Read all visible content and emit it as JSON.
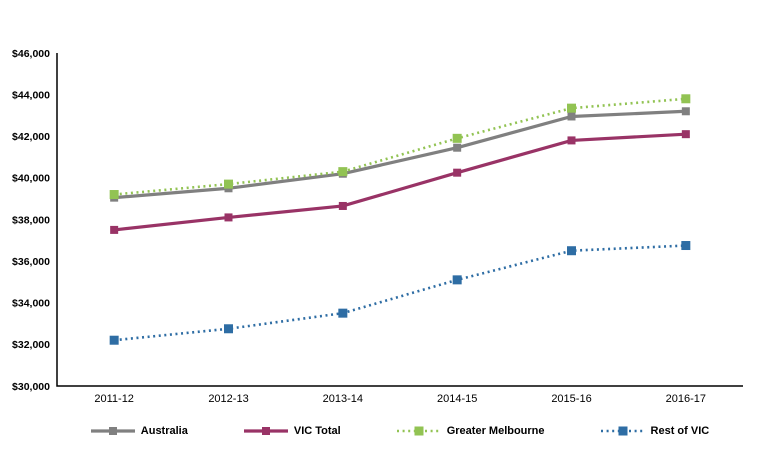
{
  "page": {
    "background_color": "#ffffff",
    "axis_color": "#000000"
  },
  "chart_data": {
    "type": "line",
    "title": "",
    "xlabel": "",
    "ylabel": "",
    "grid": false,
    "legend_position": "bottom",
    "categories": [
      "2011-12",
      "2012-13",
      "2013-14",
      "2014-15",
      "2015-16",
      "2016-17"
    ],
    "ylim": [
      30000,
      46000
    ],
    "y_tick_step": 2000,
    "y_tick_values": [
      30000,
      32000,
      34000,
      36000,
      38000,
      40000,
      42000,
      44000,
      46000
    ],
    "y_tick_labels": [
      "$30,000",
      "$32,000",
      "$34,000",
      "$36,000",
      "$38,000",
      "$40,000",
      "$42,000",
      "$44,000",
      "$46,000"
    ],
    "series": [
      {
        "name": "Australia",
        "key": "australia",
        "color": "#808080",
        "line_style": "solid",
        "marker": "square",
        "values": [
          39050,
          39500,
          40200,
          41450,
          42950,
          43200
        ]
      },
      {
        "name": "VIC Total",
        "key": "vic-total",
        "color": "#993366",
        "line_style": "solid",
        "marker": "square",
        "values": [
          37500,
          38100,
          38650,
          40250,
          41800,
          42100
        ]
      },
      {
        "name": "Greater Melbourne",
        "key": "greater-melbourne",
        "color": "#92C353",
        "line_style": "dotted",
        "marker": "square",
        "values": [
          39200,
          39700,
          40300,
          41900,
          43350,
          43800
        ]
      },
      {
        "name": "Rest of VIC",
        "key": "rest-of-vic",
        "color": "#2E6DA4",
        "line_style": "dotted",
        "marker": "square",
        "values": [
          32200,
          32750,
          33500,
          35100,
          36500,
          36750
        ]
      }
    ]
  }
}
